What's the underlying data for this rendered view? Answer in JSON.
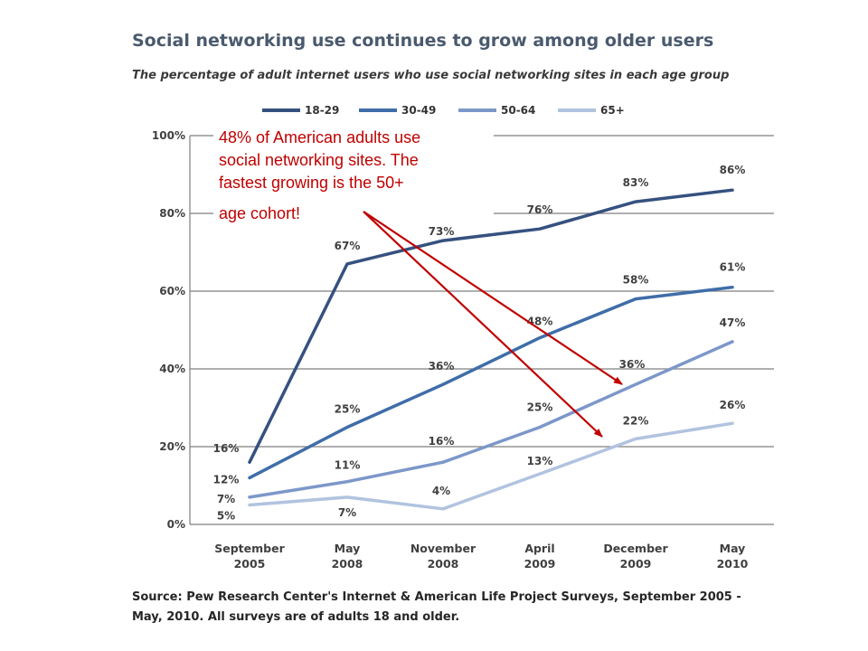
{
  "chart_data": {
    "type": "line",
    "title": "Social networking use continues to grow among older users",
    "subtitle": "The percentage of adult internet users who use social networking sites in each age group",
    "categories": [
      [
        "September",
        "2005"
      ],
      [
        "May",
        "2008"
      ],
      [
        "November",
        "2008"
      ],
      [
        "April",
        "2009"
      ],
      [
        "December",
        "2009"
      ],
      [
        "May",
        "2010"
      ]
    ],
    "y_ticks": [
      "0%",
      "20%",
      "40%",
      "60%",
      "80%",
      "100%"
    ],
    "ylim": [
      0,
      100
    ],
    "grid": "horizontal",
    "legend_position": "top",
    "series": [
      {
        "name": "18-29",
        "color": "#35517f",
        "values": [
          16,
          67,
          73,
          76,
          83,
          86
        ],
        "labels": [
          "16%",
          "67%",
          "73%",
          "76%",
          "83%",
          "86%"
        ]
      },
      {
        "name": "30-49",
        "color": "#3f6da8",
        "values": [
          12,
          25,
          36,
          48,
          58,
          61
        ],
        "labels": [
          "12%",
          "25%",
          "36%",
          "48%",
          "58%",
          "61%"
        ]
      },
      {
        "name": "50-64",
        "color": "#7c97c9",
        "values": [
          7,
          11,
          16,
          25,
          36,
          47
        ],
        "labels": [
          "7%",
          "11%",
          "16%",
          "25%",
          "36%",
          "47%"
        ]
      },
      {
        "name": "65+",
        "color": "#b1c3df",
        "values": [
          5,
          7,
          4,
          13,
          22,
          26
        ],
        "labels": [
          "5%",
          "7%",
          "4%",
          "13%",
          "22%",
          "26%"
        ]
      }
    ],
    "annotation": {
      "lines": [
        "48% of American adults use",
        "social networking sites. The",
        "fastest growing is the 50+",
        "age cohort!"
      ],
      "color": "#c00000"
    },
    "source": {
      "lines": [
        "Source:  Pew Research Center's Internet & American Life Project Surveys, September 2005 -",
        "May, 2010. All surveys are of adults 18 and older."
      ]
    }
  }
}
